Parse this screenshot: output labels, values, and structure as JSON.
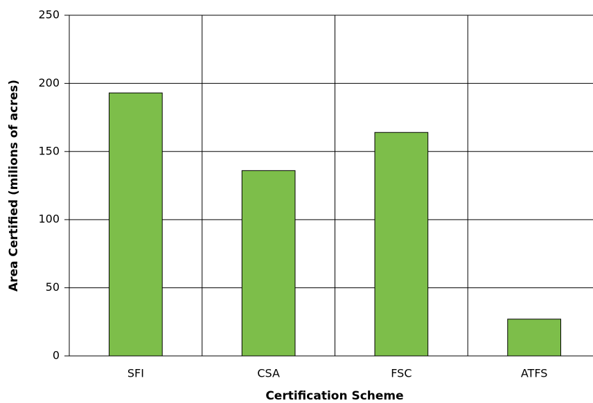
{
  "chart_data": {
    "type": "bar",
    "categories": [
      "SFI",
      "CSA",
      "FSC",
      "ATFS"
    ],
    "values": [
      193,
      136,
      164,
      27
    ],
    "color": "#7dbe4a",
    "x_label": "Certification Scheme",
    "y_label": "Area Certified (milions of acres)",
    "ylim": [
      0,
      250
    ],
    "yticks": [
      0,
      50,
      100,
      150,
      200,
      250
    ],
    "grid": true
  }
}
